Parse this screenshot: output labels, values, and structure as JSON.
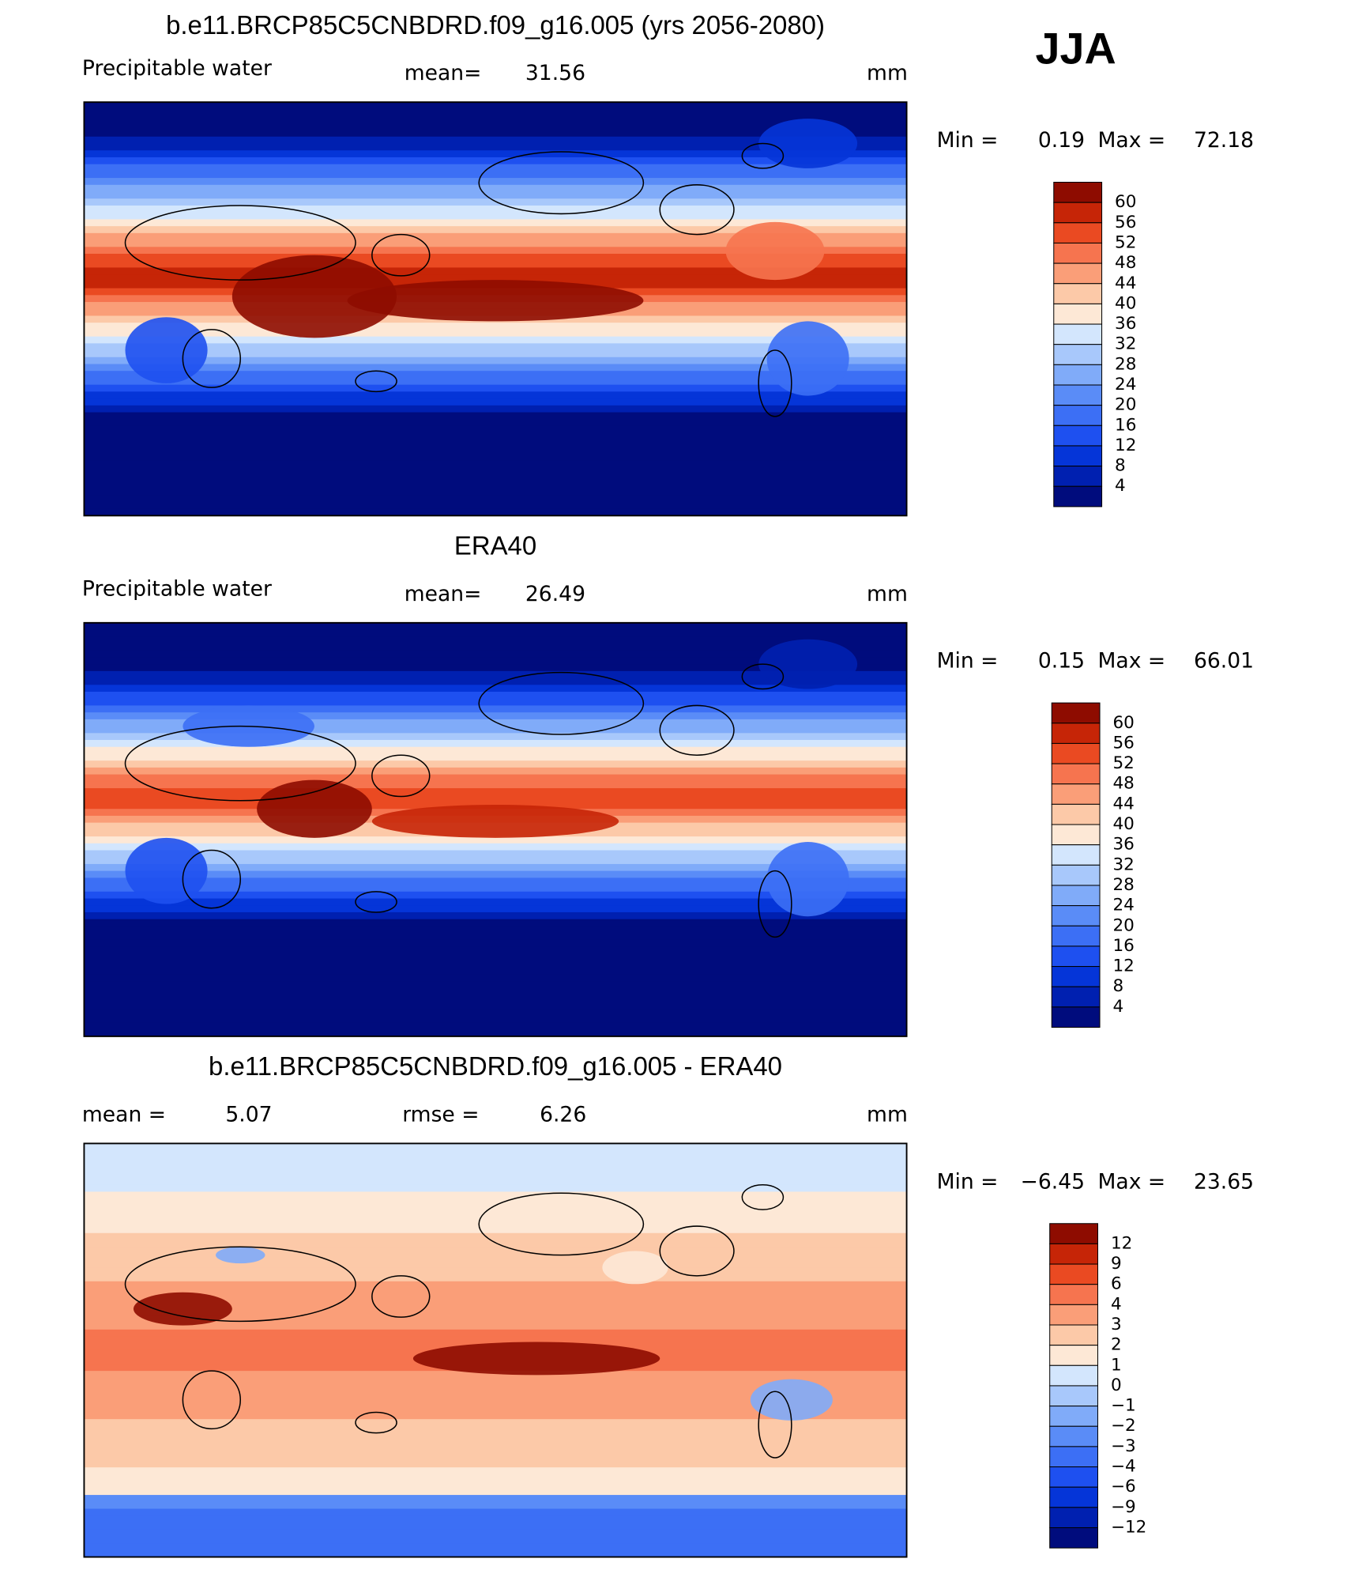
{
  "header": {
    "season": "JJA"
  },
  "panels": [
    {
      "title": "b.e11.BRCP85C5CNBDRD.f09_g16.005 (yrs 2056-2080)",
      "left_label": "Precipitable water",
      "stat_label": "mean=",
      "stat_value": "31.56",
      "units": "mm",
      "min_label": "Min =",
      "min": "0.19",
      "max_label": "Max =",
      "max": "72.18",
      "colorbar": [
        "60",
        "56",
        "52",
        "48",
        "44",
        "40",
        "36",
        "32",
        "28",
        "24",
        "20",
        "16",
        "12",
        "8",
        "4"
      ]
    },
    {
      "title": "ERA40",
      "left_label": "Precipitable water",
      "stat_label": "mean=",
      "stat_value": "26.49",
      "units": "mm",
      "min_label": "Min =",
      "min": "0.15",
      "max_label": "Max =",
      "max": "66.01",
      "colorbar": [
        "60",
        "56",
        "52",
        "48",
        "44",
        "40",
        "36",
        "32",
        "28",
        "24",
        "20",
        "16",
        "12",
        "8",
        "4"
      ]
    },
    {
      "title": "b.e11.BRCP85C5CNBDRD.f09_g16.005 - ERA40",
      "left_label": "mean =",
      "left_value": "5.07",
      "stat_label": "rmse =",
      "stat_value": "6.26",
      "units": "mm",
      "min_label": "Min =",
      "min": "−6.45",
      "max_label": "Max =",
      "max": "23.65",
      "colorbar": [
        "12",
        "9",
        "6",
        "4",
        "3",
        "2",
        "1",
        "0",
        "−1",
        "−2",
        "−3",
        "−4",
        "−6",
        "−9",
        "−12"
      ]
    }
  ]
}
